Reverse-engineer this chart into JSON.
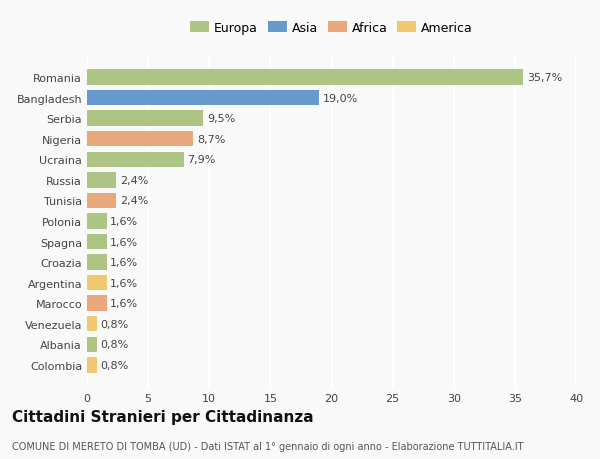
{
  "categories": [
    "Romania",
    "Bangladesh",
    "Serbia",
    "Nigeria",
    "Ucraina",
    "Russia",
    "Tunisia",
    "Polonia",
    "Spagna",
    "Croazia",
    "Argentina",
    "Marocco",
    "Venezuela",
    "Albania",
    "Colombia"
  ],
  "values": [
    35.7,
    19.0,
    9.5,
    8.7,
    7.9,
    2.4,
    2.4,
    1.6,
    1.6,
    1.6,
    1.6,
    1.6,
    0.8,
    0.8,
    0.8
  ],
  "labels": [
    "35,7%",
    "19,0%",
    "9,5%",
    "8,7%",
    "7,9%",
    "2,4%",
    "2,4%",
    "1,6%",
    "1,6%",
    "1,6%",
    "1,6%",
    "1,6%",
    "0,8%",
    "0,8%",
    "0,8%"
  ],
  "colors": [
    "#aec485",
    "#6699cc",
    "#aec485",
    "#e8a87c",
    "#aec485",
    "#aec485",
    "#e8a87c",
    "#aec485",
    "#aec485",
    "#aec485",
    "#f0c96e",
    "#e8a87c",
    "#f0c96e",
    "#aec485",
    "#f0c96e"
  ],
  "legend_labels": [
    "Europa",
    "Asia",
    "Africa",
    "America"
  ],
  "legend_colors": [
    "#aec485",
    "#6699cc",
    "#e8a87c",
    "#f0c96e"
  ],
  "xlim": [
    0,
    40
  ],
  "xticks": [
    0,
    5,
    10,
    15,
    20,
    25,
    30,
    35,
    40
  ],
  "title": "Cittadini Stranieri per Cittadinanza",
  "subtitle": "COMUNE DI MERETO DI TOMBA (UD) - Dati ISTAT al 1° gennaio di ogni anno - Elaborazione TUTTITALIA.IT",
  "background_color": "#f9f9f9",
  "grid_color": "#ffffff",
  "bar_height": 0.75,
  "title_fontsize": 11,
  "subtitle_fontsize": 7,
  "label_fontsize": 8,
  "tick_fontsize": 8,
  "legend_fontsize": 9
}
